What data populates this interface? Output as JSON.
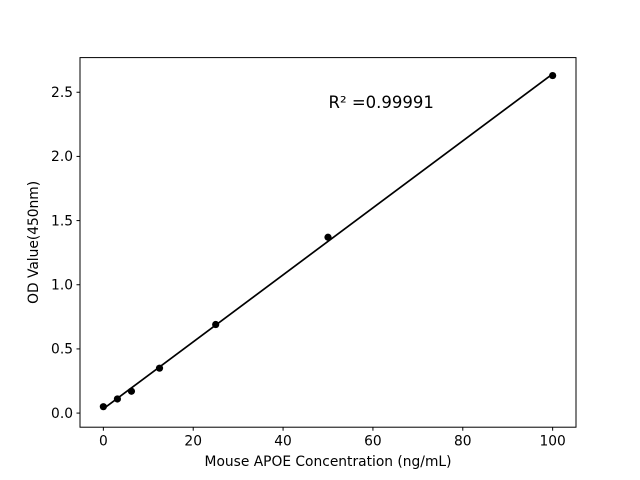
{
  "figure": {
    "background": "#ffffff"
  },
  "chart_data": {
    "type": "scatter",
    "title": "",
    "xlabel": "Mouse APOE Concentration (ng/mL)",
    "ylabel": "OD Value(450nm)",
    "points": {
      "x": [
        0,
        3.125,
        6.25,
        12.5,
        25,
        50,
        100
      ],
      "y": [
        0.05,
        0.11,
        0.17,
        0.35,
        0.69,
        1.37,
        2.63
      ]
    },
    "fit_line": {
      "slope": 0.0261,
      "intercept": 0.033,
      "x_start": 0,
      "x_end": 100,
      "r_squared": 0.99991
    },
    "annotation": {
      "text": "R² =0.99991"
    },
    "xticks": {
      "values": [
        0,
        20,
        40,
        60,
        80,
        100
      ],
      "labels": [
        "0",
        "20",
        "40",
        "60",
        "80",
        "100"
      ]
    },
    "yticks": {
      "values": [
        0,
        0.5,
        1.0,
        1.5,
        2.0,
        2.5
      ],
      "labels": [
        "0.0",
        "0.5",
        "1.0",
        "1.5",
        "2.0",
        "2.5"
      ]
    },
    "xlim": [
      -5.2,
      105.2
    ],
    "ylim": [
      -0.11,
      2.77
    ],
    "grid": false,
    "legend": false,
    "colors": {
      "marker": "#000000",
      "line": "#000000",
      "spine": "#000000",
      "text": "#000000",
      "background": "#ffffff"
    }
  }
}
